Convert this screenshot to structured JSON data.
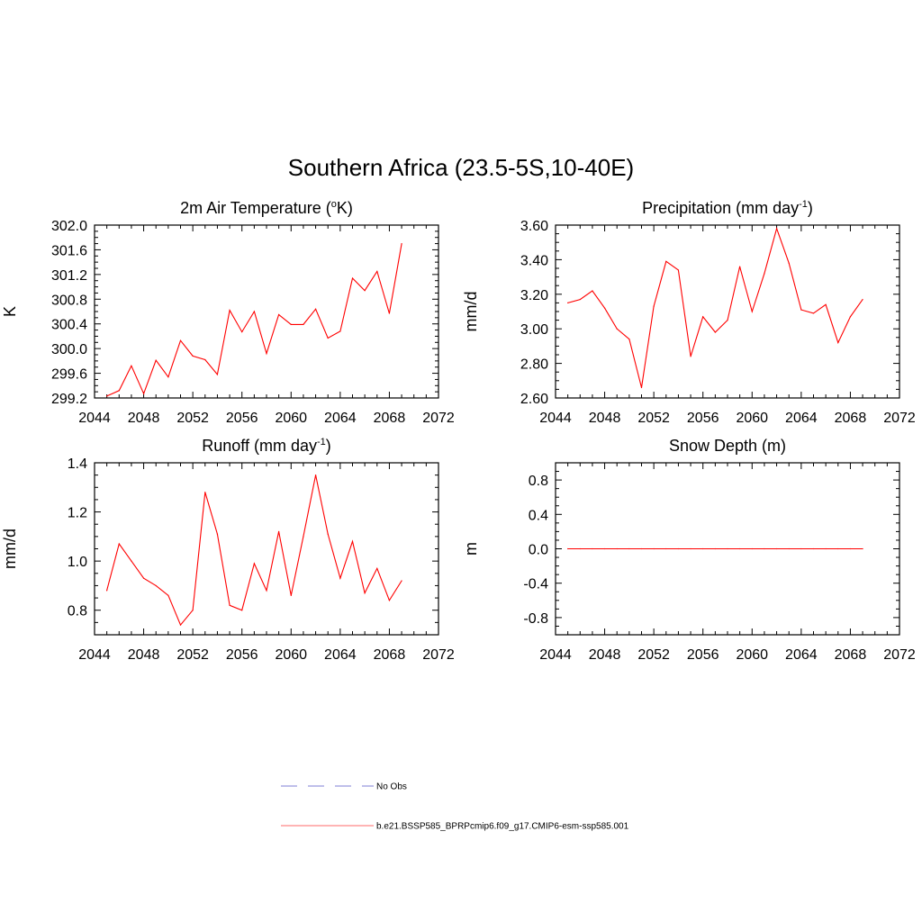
{
  "figure": {
    "title": "Southern Africa (23.5-5S,10-40E)"
  },
  "chart_data": [
    {
      "type": "line",
      "title_main": "2m Air Temperature (",
      "title_sup": "o",
      "title_tail": "K)",
      "ylabel": "K",
      "xlim": [
        2044,
        2072
      ],
      "ylim": [
        299.2,
        302.0
      ],
      "xticks": [
        2044,
        2048,
        2052,
        2056,
        2060,
        2064,
        2068,
        2072
      ],
      "yticks": [
        299.2,
        299.6,
        300.0,
        300.4,
        300.8,
        301.2,
        301.6,
        302.0
      ],
      "ytick_labels": [
        "299.2",
        "299.6",
        "300.0",
        "300.4",
        "300.8",
        "301.2",
        "301.6",
        "302.0"
      ],
      "series": [
        {
          "color": "#ff0000",
          "x": [
            2045,
            2046,
            2047,
            2048,
            2049,
            2050,
            2051,
            2052,
            2053,
            2054,
            2055,
            2056,
            2057,
            2058,
            2059,
            2060,
            2061,
            2062,
            2063,
            2064,
            2065,
            2066,
            2067,
            2068,
            2069
          ],
          "y": [
            299.23,
            299.32,
            299.72,
            299.27,
            299.81,
            299.54,
            300.13,
            299.88,
            299.82,
            299.58,
            300.62,
            300.27,
            300.6,
            299.92,
            300.55,
            300.39,
            300.39,
            300.64,
            300.17,
            300.28,
            301.14,
            300.94,
            301.25,
            300.57,
            301.7
          ]
        }
      ]
    },
    {
      "type": "line",
      "title_main": "Precipitation (mm day",
      "title_sup": "-1",
      "title_tail": ")",
      "ylabel": "mm/d",
      "xlim": [
        2044,
        2072
      ],
      "ylim": [
        2.6,
        3.6
      ],
      "xticks": [
        2044,
        2048,
        2052,
        2056,
        2060,
        2064,
        2068,
        2072
      ],
      "yticks": [
        2.6,
        2.8,
        3.0,
        3.2,
        3.4,
        3.6
      ],
      "ytick_labels": [
        "2.60",
        "2.80",
        "3.00",
        "3.20",
        "3.40",
        "3.60"
      ],
      "series": [
        {
          "color": "#ff0000",
          "x": [
            2045,
            2046,
            2047,
            2048,
            2049,
            2050,
            2051,
            2052,
            2053,
            2054,
            2055,
            2056,
            2057,
            2058,
            2059,
            2060,
            2061,
            2062,
            2063,
            2064,
            2065,
            2066,
            2067,
            2068,
            2069
          ],
          "y": [
            3.15,
            3.17,
            3.22,
            3.12,
            3.0,
            2.94,
            2.66,
            3.13,
            3.39,
            3.34,
            2.84,
            3.07,
            2.98,
            3.05,
            3.36,
            3.1,
            3.32,
            3.58,
            3.38,
            3.11,
            3.09,
            3.14,
            2.92,
            3.07,
            3.17
          ]
        }
      ]
    },
    {
      "type": "line",
      "title_main": "Runoff (mm day",
      "title_sup": "-1",
      "title_tail": ")",
      "ylabel": "mm/d",
      "xlim": [
        2044,
        2072
      ],
      "ylim": [
        0.7,
        1.4
      ],
      "xticks": [
        2044,
        2048,
        2052,
        2056,
        2060,
        2064,
        2068,
        2072
      ],
      "yticks": [
        0.8,
        1.0,
        1.2,
        1.4
      ],
      "ytick_labels": [
        "0.8",
        "1.0",
        "1.2",
        "1.4"
      ],
      "series": [
        {
          "color": "#ff0000",
          "x": [
            2045,
            2046,
            2047,
            2048,
            2049,
            2050,
            2051,
            2052,
            2053,
            2054,
            2055,
            2056,
            2057,
            2058,
            2059,
            2060,
            2061,
            2062,
            2063,
            2064,
            2065,
            2066,
            2067,
            2068,
            2069
          ],
          "y": [
            0.88,
            1.07,
            1.0,
            0.93,
            0.9,
            0.86,
            0.74,
            0.8,
            1.28,
            1.11,
            0.82,
            0.8,
            0.99,
            0.88,
            1.12,
            0.86,
            1.1,
            1.35,
            1.11,
            0.93,
            1.08,
            0.87,
            0.97,
            0.84,
            0.92
          ]
        }
      ]
    },
    {
      "type": "line",
      "title_main": "Snow Depth (m)",
      "title_sup": "",
      "title_tail": "",
      "ylabel": "m",
      "xlim": [
        2044,
        2072
      ],
      "ylim": [
        -1.0,
        1.0
      ],
      "xticks": [
        2044,
        2048,
        2052,
        2056,
        2060,
        2064,
        2068,
        2072
      ],
      "yticks": [
        -0.8,
        -0.4,
        0.0,
        0.4,
        0.8
      ],
      "ytick_labels": [
        "-0.8",
        "-0.4",
        "0.0",
        "0.4",
        "0.8"
      ],
      "series": [
        {
          "color": "#ff0000",
          "x": [
            2045,
            2046,
            2047,
            2048,
            2049,
            2050,
            2051,
            2052,
            2053,
            2054,
            2055,
            2056,
            2057,
            2058,
            2059,
            2060,
            2061,
            2062,
            2063,
            2064,
            2065,
            2066,
            2067,
            2068,
            2069
          ],
          "y": [
            0,
            0,
            0,
            0,
            0,
            0,
            0,
            0,
            0,
            0,
            0,
            0,
            0,
            0,
            0,
            0,
            0,
            0,
            0,
            0,
            0,
            0,
            0,
            0,
            0
          ]
        }
      ]
    }
  ],
  "legend": {
    "items": [
      {
        "label": "No Obs",
        "color": "#9999dd",
        "style": "dashed"
      },
      {
        "label": "b.e21.BSSP585_BPRPcmip6.f09_g17.CMIP6-esm-ssp585.001",
        "color": "#ff8888",
        "style": "solid"
      }
    ]
  }
}
